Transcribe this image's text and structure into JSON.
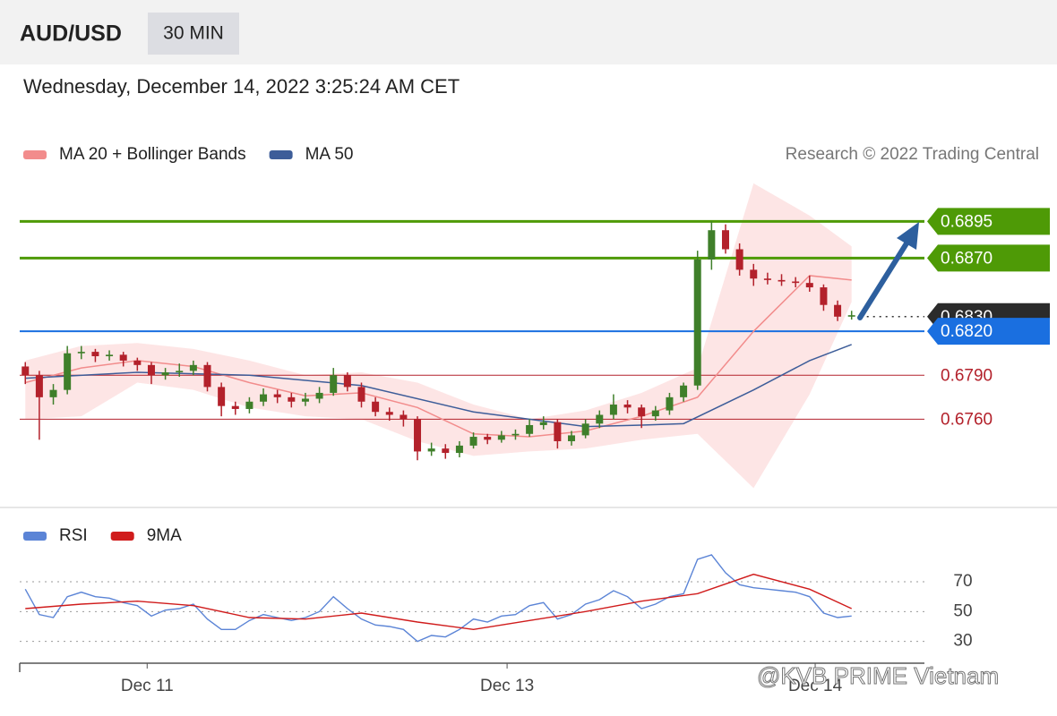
{
  "header": {
    "symbol": "AUD/USD",
    "interval": "30 MIN",
    "timestamp": "Wednesday, December 14, 2022 3:25:24 AM CET"
  },
  "watermark": "@KVB PRIME Vietnam",
  "chart_data": [
    {
      "type": "candlestick",
      "source": "Research © 2022 Trading Central",
      "xlim": [
        -0.4,
        64.2
      ],
      "ylim": [
        0.6701,
        0.6927
      ],
      "up_color": "#3f7f2a",
      "down_color": "#b3212b",
      "candles": {
        "x": [
          0,
          1,
          2,
          3,
          4,
          5,
          6,
          7,
          8,
          9,
          10,
          11,
          12,
          13,
          14,
          15,
          16,
          17,
          18,
          19,
          20,
          21,
          22,
          23,
          24,
          25,
          26,
          27,
          28,
          29,
          30,
          31,
          32,
          33,
          34,
          35,
          36,
          37,
          38,
          39,
          40,
          41,
          42,
          43,
          44,
          45,
          46,
          47,
          48,
          49,
          50,
          51,
          52,
          53,
          54,
          55,
          56,
          57,
          58,
          59
        ],
        "open": [
          0.6796,
          0.679,
          0.6775,
          0.678,
          0.6805,
          0.6806,
          0.6803,
          0.6804,
          0.68,
          0.6797,
          0.679,
          0.6792,
          0.6793,
          0.6797,
          0.6782,
          0.6769,
          0.6767,
          0.6772,
          0.6777,
          0.6775,
          0.6772,
          0.6774,
          0.6778,
          0.679,
          0.6782,
          0.6772,
          0.6765,
          0.6763,
          0.676,
          0.6738,
          0.674,
          0.6737,
          0.6742,
          0.6748,
          0.6746,
          0.6749,
          0.675,
          0.6756,
          0.6758,
          0.6745,
          0.6749,
          0.6757,
          0.6763,
          0.677,
          0.6768,
          0.6762,
          0.6766,
          0.6775,
          0.6783,
          0.6869,
          0.6889,
          0.6876,
          0.6862,
          0.6856,
          0.6855,
          0.6854,
          0.6853,
          0.685,
          0.6838,
          0.683
        ],
        "high": [
          0.6799,
          0.6793,
          0.6784,
          0.681,
          0.681,
          0.6808,
          0.6807,
          0.6806,
          0.6802,
          0.6799,
          0.6795,
          0.6798,
          0.68,
          0.6799,
          0.6785,
          0.6772,
          0.6775,
          0.6781,
          0.678,
          0.6778,
          0.6778,
          0.6782,
          0.6795,
          0.6792,
          0.6785,
          0.6775,
          0.6768,
          0.6766,
          0.6762,
          0.6744,
          0.6743,
          0.6745,
          0.6751,
          0.675,
          0.6752,
          0.6753,
          0.676,
          0.6762,
          0.676,
          0.6752,
          0.676,
          0.6766,
          0.6777,
          0.6773,
          0.677,
          0.6769,
          0.6778,
          0.6785,
          0.6875,
          0.6895,
          0.6893,
          0.688,
          0.6866,
          0.686,
          0.6859,
          0.6857,
          0.6858,
          0.6852,
          0.6841,
          0.6834
        ],
        "low": [
          0.6784,
          0.6746,
          0.677,
          0.6777,
          0.6801,
          0.6799,
          0.68,
          0.6796,
          0.6793,
          0.6784,
          0.6787,
          0.6789,
          0.679,
          0.6779,
          0.6762,
          0.6763,
          0.6764,
          0.6769,
          0.6771,
          0.6768,
          0.6769,
          0.6771,
          0.6776,
          0.6779,
          0.6768,
          0.6762,
          0.6759,
          0.6755,
          0.6732,
          0.6735,
          0.6733,
          0.6734,
          0.674,
          0.6743,
          0.6744,
          0.6746,
          0.6748,
          0.6753,
          0.674,
          0.6742,
          0.6747,
          0.6754,
          0.676,
          0.6764,
          0.6754,
          0.6759,
          0.6763,
          0.6772,
          0.678,
          0.6862,
          0.6873,
          0.6858,
          0.6851,
          0.6852,
          0.6851,
          0.685,
          0.6847,
          0.6834,
          0.6827,
          0.6828
        ],
        "close": [
          0.679,
          0.6775,
          0.678,
          0.6805,
          0.6806,
          0.6803,
          0.6804,
          0.68,
          0.6797,
          0.679,
          0.6792,
          0.6793,
          0.6797,
          0.6782,
          0.6769,
          0.6767,
          0.6772,
          0.6777,
          0.6775,
          0.6772,
          0.6774,
          0.6778,
          0.679,
          0.6782,
          0.6772,
          0.6765,
          0.6763,
          0.676,
          0.6738,
          0.674,
          0.6737,
          0.6742,
          0.6748,
          0.6746,
          0.6749,
          0.675,
          0.6756,
          0.6758,
          0.6745,
          0.6749,
          0.6757,
          0.6763,
          0.677,
          0.6768,
          0.6762,
          0.6766,
          0.6775,
          0.6783,
          0.6869,
          0.6889,
          0.6876,
          0.6862,
          0.6856,
          0.6855,
          0.6854,
          0.6853,
          0.685,
          0.6838,
          0.683,
          0.6831
        ]
      },
      "series": [
        {
          "name": "MA 20 + Bollinger Bands",
          "color": "#f28c8c",
          "band_color": "#fcdcdc",
          "x": [
            0,
            4,
            8,
            12,
            16,
            20,
            24,
            28,
            32,
            36,
            40,
            44,
            48,
            52,
            56,
            59
          ],
          "values": [
            0.6785,
            0.6795,
            0.68,
            0.6796,
            0.6785,
            0.6776,
            0.6778,
            0.6768,
            0.675,
            0.6748,
            0.6752,
            0.6762,
            0.6775,
            0.682,
            0.6858,
            0.6855
          ],
          "upper": [
            0.68,
            0.681,
            0.6812,
            0.6808,
            0.68,
            0.679,
            0.6792,
            0.6785,
            0.677,
            0.676,
            0.6766,
            0.6778,
            0.6795,
            0.6921,
            0.6899,
            0.6878
          ],
          "lower": [
            0.676,
            0.6762,
            0.6785,
            0.678,
            0.6768,
            0.6762,
            0.676,
            0.6745,
            0.6735,
            0.6738,
            0.674,
            0.6746,
            0.675,
            0.6713,
            0.6777,
            0.684
          ]
        },
        {
          "name": "MA 50",
          "color": "#3d5d99",
          "x": [
            0,
            8,
            16,
            24,
            32,
            40,
            44,
            47,
            52,
            56,
            59
          ],
          "values": [
            0.6788,
            0.6792,
            0.679,
            0.6783,
            0.6765,
            0.6755,
            0.6756,
            0.6757,
            0.678,
            0.68,
            0.6811
          ]
        }
      ],
      "levels": [
        {
          "value": 0.6895,
          "label": "0.6895",
          "color": "#4e9a06",
          "tag": true,
          "line": "solid",
          "width": 3
        },
        {
          "value": 0.687,
          "label": "0.6870",
          "color": "#4e9a06",
          "tag": true,
          "line": "solid",
          "width": 3
        },
        {
          "value": 0.683,
          "label": "0.6830",
          "color": "#2b2b2b",
          "tag": true,
          "line": "dotted",
          "width": 1.5
        },
        {
          "value": 0.682,
          "label": "0.6820",
          "color": "#1a6fe0",
          "tag": true,
          "line": "solid",
          "width": 2
        },
        {
          "value": 0.679,
          "label": "0.6790",
          "color": "#b3212b",
          "tag": false,
          "line": "solid",
          "width": 1
        },
        {
          "value": 0.676,
          "label": "0.6760",
          "color": "#b3212b",
          "tag": false,
          "line": "solid",
          "width": 1
        }
      ]
    },
    {
      "type": "line",
      "xlim": [
        -0.4,
        64.2
      ],
      "ylim": [
        19,
        91
      ],
      "yticks": [
        30,
        50,
        70
      ],
      "xticks": [
        {
          "value": 8.7,
          "label": "Dec 11"
        },
        {
          "value": 34.4,
          "label": "Dec 13"
        },
        {
          "value": 56.4,
          "label": "Dec 14"
        }
      ],
      "series": [
        {
          "name": "RSI",
          "color": "#5b84d6",
          "x": [
            0,
            1,
            2,
            3,
            4,
            5,
            6,
            7,
            8,
            9,
            10,
            11,
            12,
            13,
            14,
            15,
            16,
            17,
            18,
            19,
            20,
            21,
            22,
            23,
            24,
            25,
            26,
            27,
            28,
            29,
            30,
            31,
            32,
            33,
            34,
            35,
            36,
            37,
            38,
            39,
            40,
            41,
            42,
            43,
            44,
            45,
            46,
            47,
            48,
            49,
            50,
            51,
            52,
            53,
            54,
            55,
            56,
            57,
            58,
            59
          ],
          "values": [
            65,
            48,
            46,
            60,
            63,
            60,
            59,
            56,
            54,
            47,
            51,
            52,
            55,
            45,
            38,
            38,
            44,
            48,
            46,
            44,
            46,
            50,
            60,
            52,
            45,
            41,
            40,
            38,
            30,
            34,
            33,
            38,
            45,
            43,
            47,
            48,
            54,
            56,
            45,
            48,
            55,
            58,
            64,
            60,
            52,
            55,
            60,
            62,
            85,
            88,
            76,
            68,
            66,
            65,
            64,
            63,
            60,
            49,
            46,
            47
          ]
        },
        {
          "name": "9MA",
          "color": "#d01c1c",
          "x": [
            0,
            4,
            8,
            12,
            16,
            20,
            24,
            28,
            32,
            36,
            40,
            44,
            48,
            52,
            56,
            59
          ],
          "values": [
            52,
            55,
            57,
            54,
            46,
            45,
            49,
            43,
            38,
            44,
            50,
            57,
            62,
            75,
            65,
            52
          ]
        }
      ]
    }
  ]
}
